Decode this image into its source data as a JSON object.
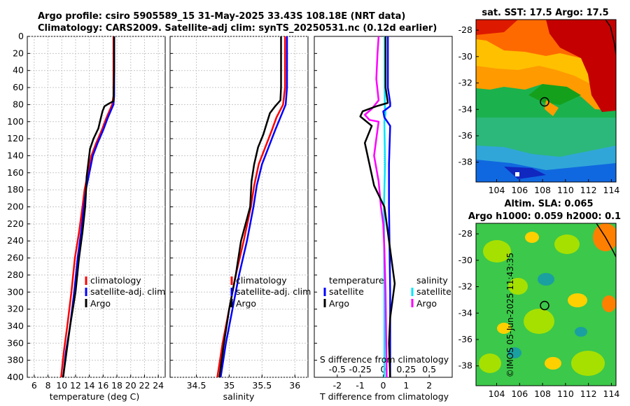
{
  "header": {
    "line1": "Argo profile: csiro 5905589_15 31-May-2025 33.43S 108.18E (NRT data)",
    "line2": "Climatology: CARS2009. Satellite-adj clim: synTS_20250531.nc (0.12d earlier)"
  },
  "watermark": "©IMOS 05-Jun-2025 11:43:35",
  "colors": {
    "red": "#ff0000",
    "blue": "#0000ff",
    "black": "#000000",
    "cyan": "#00e5ff",
    "magenta": "#ff00ff",
    "grid": "#c8c8c8"
  },
  "chart_data": [
    {
      "type": "line",
      "id": "temperature",
      "xlabel": "temperature (deg C)",
      "ylabel": "depth",
      "xlim": [
        5,
        25
      ],
      "ylim": [
        400,
        0
      ],
      "x_ticks": [
        6,
        8,
        10,
        12,
        14,
        16,
        18,
        20,
        22,
        24
      ],
      "y_ticks": [
        0,
        20,
        40,
        60,
        80,
        100,
        120,
        140,
        160,
        180,
        200,
        220,
        240,
        260,
        280,
        300,
        320,
        340,
        360,
        380,
        400
      ],
      "legend": [
        "climatology",
        "satellite-adj. clim",
        "Argo"
      ],
      "series": [
        {
          "name": "climatology",
          "color": "#ff0000",
          "points": [
            [
              17.5,
              0
            ],
            [
              17.5,
              40
            ],
            [
              17.5,
              70
            ],
            [
              17.3,
              80
            ],
            [
              16.5,
              95
            ],
            [
              15.8,
              110
            ],
            [
              15.0,
              125
            ],
            [
              14.3,
              140
            ],
            [
              13.8,
              160
            ],
            [
              13.3,
              180
            ],
            [
              13.0,
              200
            ],
            [
              12.5,
              230
            ],
            [
              11.9,
              260
            ],
            [
              11.4,
              300
            ],
            [
              10.8,
              340
            ],
            [
              10.3,
              370
            ],
            [
              9.9,
              400
            ]
          ]
        },
        {
          "name": "satellite-adj. clim",
          "color": "#0000ff",
          "points": [
            [
              17.6,
              0
            ],
            [
              17.6,
              40
            ],
            [
              17.6,
              70
            ],
            [
              17.5,
              80
            ],
            [
              16.7,
              95
            ],
            [
              16.0,
              110
            ],
            [
              15.2,
              125
            ],
            [
              14.5,
              140
            ],
            [
              14.0,
              160
            ],
            [
              13.5,
              180
            ],
            [
              13.2,
              200
            ],
            [
              12.8,
              230
            ],
            [
              12.3,
              260
            ],
            [
              11.8,
              300
            ],
            [
              11.2,
              340
            ],
            [
              10.6,
              370
            ],
            [
              10.2,
              400
            ]
          ]
        },
        {
          "name": "Argo",
          "color": "#000000",
          "points": [
            [
              17.6,
              0
            ],
            [
              17.6,
              40
            ],
            [
              17.5,
              76
            ],
            [
              16.8,
              79
            ],
            [
              16.2,
              82
            ],
            [
              15.9,
              88
            ],
            [
              15.6,
              98
            ],
            [
              15.3,
              108
            ],
            [
              14.6,
              120
            ],
            [
              14.1,
              132
            ],
            [
              13.9,
              145
            ],
            [
              13.6,
              165
            ],
            [
              13.5,
              185
            ],
            [
              13.4,
              200
            ],
            [
              13.0,
              230
            ],
            [
              12.5,
              260
            ],
            [
              12.0,
              300
            ],
            [
              11.2,
              340
            ],
            [
              10.7,
              370
            ],
            [
              10.2,
              400
            ]
          ]
        }
      ]
    },
    {
      "type": "line",
      "id": "salinity",
      "xlabel": "salinity",
      "ylabel": "depth",
      "xlim": [
        34.1,
        36.2
      ],
      "ylim": [
        400,
        0
      ],
      "x_ticks": [
        34.5,
        35,
        35.5,
        36
      ],
      "legend": [
        "climatology",
        "satellite-adj. clim",
        "Argo"
      ],
      "series": [
        {
          "name": "climatology",
          "color": "#ff0000",
          "points": [
            [
              35.85,
              0
            ],
            [
              35.85,
              60
            ],
            [
              35.82,
              80
            ],
            [
              35.72,
              95
            ],
            [
              35.65,
              110
            ],
            [
              35.55,
              130
            ],
            [
              35.45,
              150
            ],
            [
              35.38,
              175
            ],
            [
              35.33,
              200
            ],
            [
              35.22,
              240
            ],
            [
              35.1,
              280
            ],
            [
              35.0,
              320
            ],
            [
              34.9,
              360
            ],
            [
              34.82,
              400
            ]
          ]
        },
        {
          "name": "satellite-adj. clim",
          "color": "#0000ff",
          "points": [
            [
              35.88,
              0
            ],
            [
              35.88,
              60
            ],
            [
              35.86,
              80
            ],
            [
              35.78,
              95
            ],
            [
              35.7,
              110
            ],
            [
              35.6,
              130
            ],
            [
              35.5,
              150
            ],
            [
              35.42,
              175
            ],
            [
              35.37,
              200
            ],
            [
              35.27,
              240
            ],
            [
              35.15,
              280
            ],
            [
              35.05,
              320
            ],
            [
              34.95,
              360
            ],
            [
              34.87,
              400
            ]
          ]
        },
        {
          "name": "Argo",
          "color": "#000000",
          "points": [
            [
              35.79,
              0
            ],
            [
              35.79,
              60
            ],
            [
              35.78,
              75
            ],
            [
              35.7,
              82
            ],
            [
              35.62,
              90
            ],
            [
              35.58,
              100
            ],
            [
              35.52,
              115
            ],
            [
              35.44,
              130
            ],
            [
              35.38,
              150
            ],
            [
              35.34,
              170
            ],
            [
              35.32,
              200
            ],
            [
              35.18,
              240
            ],
            [
              35.1,
              280
            ],
            [
              35.0,
              320
            ],
            [
              34.92,
              360
            ],
            [
              34.85,
              400
            ]
          ]
        }
      ]
    },
    {
      "type": "line",
      "id": "difference",
      "xlabel": "T difference from climatology",
      "x2label": "S difference from climatology",
      "ylabel": "depth",
      "xlim": [
        -3,
        3
      ],
      "ylim": [
        400,
        0
      ],
      "x_ticks": [
        -2,
        -1,
        0,
        1,
        2
      ],
      "x2_ticks": [
        "-0.5",
        "-0.25",
        "0",
        "0.25",
        "0.5"
      ],
      "legend_left_title": "temperature",
      "legend_right_title": "salinity",
      "legend_left": [
        "satellite",
        "Argo"
      ],
      "legend_right": [
        "satellite",
        "Argo"
      ],
      "series": [
        {
          "name": "salinity satellite",
          "color": "#00e5ff",
          "points": [
            [
              0.06,
              0
            ],
            [
              0.06,
              60
            ],
            [
              0.07,
              80
            ],
            [
              0.1,
              90
            ],
            [
              0.05,
              100
            ],
            [
              0.08,
              150
            ],
            [
              0.03,
              200
            ],
            [
              0.05,
              300
            ],
            [
              0.05,
              400
            ]
          ]
        },
        {
          "name": "temperature satellite",
          "color": "#0000ff",
          "points": [
            [
              0.2,
              0
            ],
            [
              0.2,
              60
            ],
            [
              0.3,
              78
            ],
            [
              0.3,
              82
            ],
            [
              0.0,
              88
            ],
            [
              0.05,
              95
            ],
            [
              0.3,
              105
            ],
            [
              0.25,
              150
            ],
            [
              0.25,
              200
            ],
            [
              0.3,
              300
            ],
            [
              0.3,
              400
            ]
          ]
        },
        {
          "name": "salinity Argo",
          "color": "#ff00ff",
          "points": [
            [
              -0.2,
              0
            ],
            [
              -0.25,
              20
            ],
            [
              -0.3,
              50
            ],
            [
              -0.2,
              75
            ],
            [
              -0.5,
              85
            ],
            [
              -0.8,
              92
            ],
            [
              -0.6,
              98
            ],
            [
              -0.2,
              100
            ],
            [
              -0.3,
              120
            ],
            [
              -0.4,
              140
            ],
            [
              -0.2,
              170
            ],
            [
              -0.1,
              200
            ],
            [
              0.0,
              220
            ],
            [
              0.05,
              250
            ],
            [
              0.1,
              300
            ],
            [
              0.15,
              400
            ]
          ]
        },
        {
          "name": "temperature Argo",
          "color": "#000000",
          "points": [
            [
              0.1,
              0
            ],
            [
              0.1,
              60
            ],
            [
              0.2,
              78
            ],
            [
              -0.3,
              82
            ],
            [
              -0.9,
              88
            ],
            [
              -1.0,
              94
            ],
            [
              -0.5,
              105
            ],
            [
              -0.8,
              125
            ],
            [
              -0.6,
              150
            ],
            [
              -0.4,
              175
            ],
            [
              0.05,
              200
            ],
            [
              0.2,
              230
            ],
            [
              0.35,
              260
            ],
            [
              0.5,
              290
            ],
            [
              0.3,
              330
            ],
            [
              0.25,
              360
            ],
            [
              0.3,
              400
            ]
          ]
        }
      ]
    },
    {
      "type": "heatmap",
      "id": "sst-map",
      "title": "sat. SST: 17.5 Argo: 17.5",
      "xlim": [
        102.2,
        114.4
      ],
      "ylim": [
        -39.5,
        -27.2
      ],
      "x_ticks": [
        104,
        106,
        108,
        110,
        112,
        114
      ],
      "y_ticks": [
        -28,
        -30,
        -32,
        -34,
        -36,
        -38
      ],
      "marker": [
        108.18,
        -33.43
      ]
    },
    {
      "type": "heatmap",
      "id": "sla-map",
      "title": "Altim. SLA: 0.065",
      "subtitle": "Argo h1000: 0.059 h2000: 0.1",
      "xlim": [
        102.2,
        114.4
      ],
      "ylim": [
        -39.5,
        -27.2
      ],
      "x_ticks": [
        104,
        106,
        108,
        110,
        112,
        114
      ],
      "y_ticks": [
        -28,
        -30,
        -32,
        -34,
        -36,
        -38
      ],
      "marker": [
        108.18,
        -33.43
      ]
    }
  ]
}
